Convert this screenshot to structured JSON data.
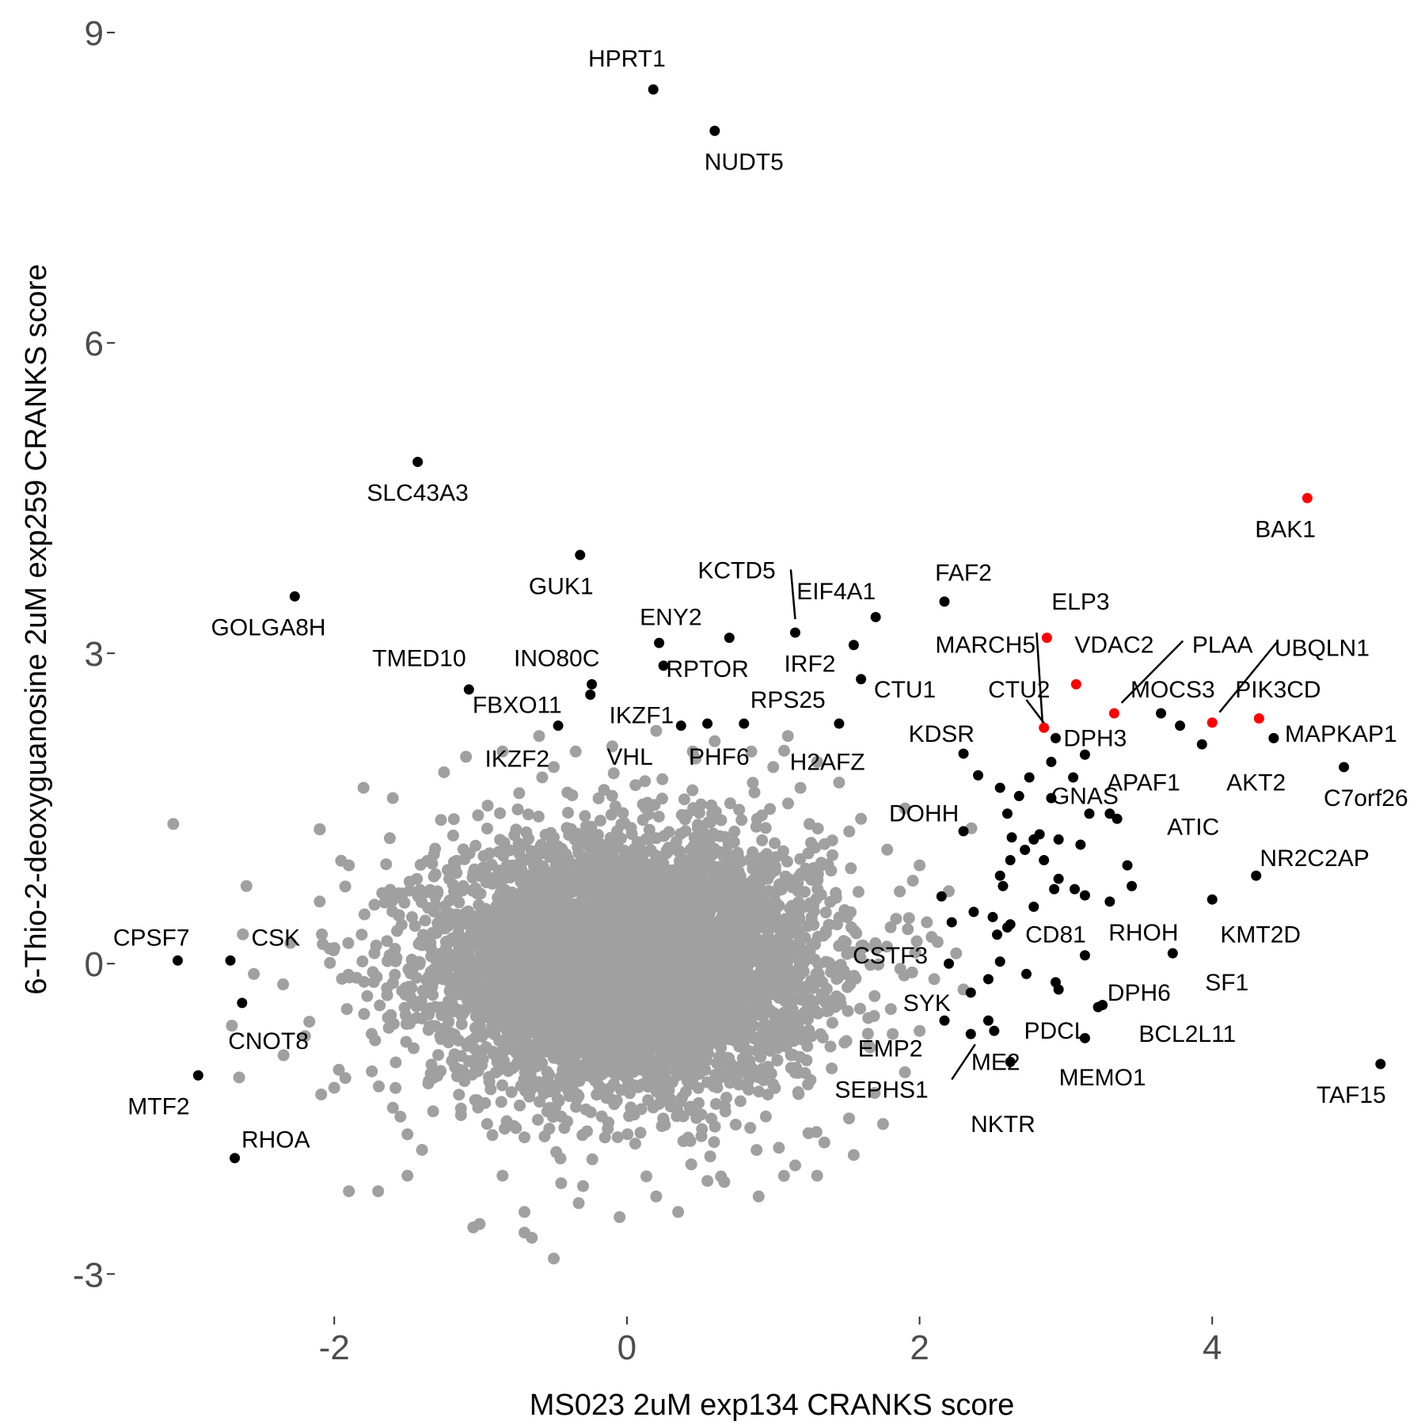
{
  "chart_data": {
    "type": "scatter",
    "xlabel": "MS023 2uM exp134 CRANKS score",
    "ylabel": "6-Thio-2-deoxyguanosine 2uM exp259 CRANKS score",
    "xlim": [
      -3.5,
      5.4
    ],
    "ylim": [
      -3.35,
      9.2
    ],
    "x_ticks": [
      {
        "value": -2,
        "label": "-2"
      },
      {
        "value": 0,
        "label": "0"
      },
      {
        "value": 2,
        "label": "2"
      },
      {
        "value": 4,
        "label": "4"
      }
    ],
    "y_ticks": [
      {
        "value": -3,
        "label": "-3"
      },
      {
        "value": 0,
        "label": "0"
      },
      {
        "value": 3,
        "label": "3"
      },
      {
        "value": 6,
        "label": "6"
      },
      {
        "value": 9,
        "label": "9"
      }
    ],
    "grid": false,
    "colors": {
      "background": "#ffffff",
      "background_points": "#a0a0a0",
      "highlight_black": "#000000",
      "highlight_red": "#ff0000",
      "tick_text": "#4d4d4d",
      "axis_text": "#000000"
    },
    "background_cloud": {
      "description_free": true,
      "center": [
        0.0,
        0.0
      ],
      "sd": [
        0.65,
        0.6
      ],
      "count": 6000
    },
    "background_points": [
      [
        -3.1,
        1.35
      ],
      [
        -2.6,
        0.75
      ],
      [
        -2.3,
        0.2
      ],
      [
        -2.55,
        -0.1
      ],
      [
        -2.7,
        -0.6
      ],
      [
        -2.65,
        -1.1
      ],
      [
        -2.35,
        -0.2
      ],
      [
        -1.9,
        -2.2
      ],
      [
        -1.7,
        -2.2
      ],
      [
        -1.5,
        -1.65
      ],
      [
        -1.5,
        -2.05
      ],
      [
        -1.05,
        -2.55
      ],
      [
        -0.85,
        -2.05
      ],
      [
        -0.7,
        -2.6
      ],
      [
        -0.65,
        -2.65
      ],
      [
        -0.5,
        -2.85
      ],
      [
        -0.3,
        -2.15
      ],
      [
        -0.05,
        -2.45
      ],
      [
        0.2,
        -2.25
      ],
      [
        0.55,
        -2.1
      ],
      [
        0.9,
        -2.25
      ],
      [
        -2.1,
        1.3
      ],
      [
        -1.8,
        1.7
      ],
      [
        -1.6,
        1.6
      ],
      [
        -1.25,
        1.85
      ],
      [
        -1.1,
        2.0
      ],
      [
        -0.85,
        2.05
      ],
      [
        -0.5,
        1.9
      ],
      [
        -0.35,
        2.05
      ],
      [
        -0.1,
        2.1
      ],
      [
        0.2,
        2.25
      ],
      [
        0.45,
        2.05
      ],
      [
        0.6,
        2.15
      ],
      [
        0.85,
        2.05
      ],
      [
        1.1,
        2.2
      ],
      [
        1.3,
        1.95
      ],
      [
        1.45,
        1.75
      ],
      [
        1.6,
        1.4
      ],
      [
        1.9,
        1.5
      ],
      [
        2.0,
        0.95
      ],
      [
        2.05,
        0.4
      ],
      [
        2.1,
        -0.15
      ],
      [
        2.0,
        -0.65
      ],
      [
        1.9,
        -1.05
      ],
      [
        1.75,
        -1.55
      ],
      [
        1.55,
        -1.85
      ],
      [
        1.3,
        -2.05
      ],
      [
        1.15,
        -1.95
      ],
      [
        -2.0,
        -1.2
      ],
      [
        -2.2,
        -0.7
      ],
      [
        -2.1,
        0.6
      ],
      [
        -1.9,
        0.95
      ],
      [
        2.2,
        0.7
      ],
      [
        2.25,
        0.1
      ],
      [
        2.3,
        -0.25
      ],
      [
        -1.4,
        -1.8
      ],
      [
        0.35,
        -2.4
      ],
      [
        -0.7,
        -2.4
      ],
      [
        1.0,
        1.9
      ],
      [
        -0.6,
        2.2
      ]
    ],
    "highlighted_points": [
      {
        "label": "HPRT1",
        "x": 0.18,
        "y": 8.45,
        "color": "black"
      },
      {
        "label": "NUDT5",
        "x": 0.6,
        "y": 8.05,
        "color": "black"
      },
      {
        "label": "SLC43A3",
        "x": -1.43,
        "y": 4.85,
        "color": "black"
      },
      {
        "label": "BAK1",
        "x": 4.65,
        "y": 4.5,
        "color": "red"
      },
      {
        "label": "GUK1",
        "x": -0.32,
        "y": 3.95,
        "color": "black"
      },
      {
        "label": "GOLGA8H",
        "x": -2.27,
        "y": 3.55,
        "color": "black"
      },
      {
        "label": "FAF2",
        "x": 2.17,
        "y": 3.5,
        "color": "black"
      },
      {
        "label": "EIF4A1",
        "x": 1.7,
        "y": 3.35,
        "color": "black"
      },
      {
        "label": "KCTD5",
        "x": 1.15,
        "y": 3.2,
        "color": "black"
      },
      {
        "label": "IRF2",
        "x": 0.7,
        "y": 3.15,
        "color": "black"
      },
      {
        "label": "ENY2",
        "x": 0.22,
        "y": 3.1,
        "color": "black"
      },
      {
        "label": "ELP3",
        "x": 2.87,
        "y": 3.15,
        "color": "red"
      },
      {
        "label": "MARCH5",
        "x": 1.55,
        "y": 3.08,
        "color": "black"
      },
      {
        "label": "RPTOR",
        "x": 0.25,
        "y": 2.88,
        "color": "black"
      },
      {
        "label": "CTU1",
        "x": 1.6,
        "y": 2.75,
        "color": "black"
      },
      {
        "label": "VDAC2",
        "x": 3.07,
        "y": 2.7,
        "color": "red"
      },
      {
        "label": "INO80C",
        "x": -0.24,
        "y": 2.7,
        "color": "black"
      },
      {
        "label": "TMED10",
        "x": -1.08,
        "y": 2.65,
        "color": "black"
      },
      {
        "label": "FBXO11",
        "x": -0.25,
        "y": 2.6,
        "color": "black"
      },
      {
        "label": "PLAA",
        "x": 3.33,
        "y": 2.42,
        "color": "red"
      },
      {
        "label": "MOCS3",
        "x": 3.65,
        "y": 2.42,
        "color": "black"
      },
      {
        "label": "UBQLN1",
        "x": 4.0,
        "y": 2.33,
        "color": "red"
      },
      {
        "label": "PIK3CD",
        "x": 4.32,
        "y": 2.37,
        "color": "red"
      },
      {
        "label": "CTU2",
        "x": 2.85,
        "y": 2.28,
        "color": "red"
      },
      {
        "label": "IKZF1",
        "x": 0.55,
        "y": 2.32,
        "color": "black"
      },
      {
        "label": "RPS25",
        "x": 1.45,
        "y": 2.32,
        "color": "black"
      },
      {
        "label": "PHF6",
        "x": 0.8,
        "y": 2.32,
        "color": "black"
      },
      {
        "label": "VHL",
        "x": 0.37,
        "y": 2.3,
        "color": "black"
      },
      {
        "label": "IKZF2",
        "x": -0.47,
        "y": 2.3,
        "color": "black"
      },
      {
        "label": "DPH3",
        "x": 2.93,
        "y": 2.18,
        "color": "black"
      },
      {
        "label": "MAPKAP1",
        "x": 4.42,
        "y": 2.18,
        "color": "black"
      },
      {
        "label": "AKT2",
        "x": 3.93,
        "y": 2.12,
        "color": "black"
      },
      {
        "label": "APAF1",
        "x": 3.78,
        "y": 2.3,
        "color": "black"
      },
      {
        "label": "KDSR",
        "x": 2.3,
        "y": 2.03,
        "color": "black"
      },
      {
        "label": "C7orf26",
        "x": 4.9,
        "y": 1.9,
        "color": "black"
      },
      {
        "label": "GNAS",
        "x": 3.13,
        "y": 2.02,
        "color": "black"
      },
      {
        "label": "ATIC",
        "x": 3.3,
        "y": 1.45,
        "color": "black"
      },
      {
        "label": "DOHH",
        "x": 2.3,
        "y": 1.28,
        "color": "black"
      },
      {
        "label": "NR2C2AP",
        "x": 4.3,
        "y": 0.85,
        "color": "black"
      },
      {
        "label": "KMT2D",
        "x": 4.0,
        "y": 0.62,
        "color": "black"
      },
      {
        "label": "CD81",
        "x": 2.92,
        "y": 0.72,
        "color": "black"
      },
      {
        "label": "RHOH",
        "x": 3.3,
        "y": 0.6,
        "color": "black"
      },
      {
        "label": "CPSF7",
        "x": -3.07,
        "y": 0.03,
        "color": "black"
      },
      {
        "label": "CSK",
        "x": -2.71,
        "y": 0.03,
        "color": "black"
      },
      {
        "label": "CSTF3",
        "x": 2.22,
        "y": 0.4,
        "color": "black"
      },
      {
        "label": "SF1",
        "x": 3.73,
        "y": 0.1,
        "color": "black"
      },
      {
        "label": "DPH6",
        "x": 3.13,
        "y": 0.08,
        "color": "black"
      },
      {
        "label": "CNOT8",
        "x": -2.63,
        "y": -0.38,
        "color": "black"
      },
      {
        "label": "SYK",
        "x": 2.35,
        "y": -0.28,
        "color": "black"
      },
      {
        "label": "BCL2L11",
        "x": 3.22,
        "y": -0.42,
        "color": "black"
      },
      {
        "label": "PDCL",
        "x": 2.93,
        "y": -0.18,
        "color": "black"
      },
      {
        "label": "EMP2",
        "x": 2.17,
        "y": -0.55,
        "color": "black"
      },
      {
        "label": "ME2",
        "x": 2.35,
        "y": -0.68,
        "color": "black"
      },
      {
        "label": "MEMO1",
        "x": 3.13,
        "y": -0.72,
        "color": "black"
      },
      {
        "label": "SEPHS1",
        "x": 2.51,
        "y": -0.65,
        "color": "black"
      },
      {
        "label": "NKTR",
        "x": 2.62,
        "y": -0.95,
        "color": "black"
      },
      {
        "label": "MTF2",
        "x": -2.93,
        "y": -1.08,
        "color": "black"
      },
      {
        "label": "TAF15",
        "x": 5.15,
        "y": -0.97,
        "color": "black"
      },
      {
        "label": "RHOA",
        "x": -2.68,
        "y": -1.88,
        "color": "black"
      }
    ],
    "unlabeled_points": [
      [
        2.55,
        1.7
      ],
      [
        2.75,
        1.8
      ],
      [
        2.9,
        1.95
      ],
      [
        3.05,
        1.8
      ],
      [
        2.6,
        1.45
      ],
      [
        2.82,
        1.25
      ],
      [
        2.78,
        1.2
      ],
      [
        2.63,
        1.22
      ],
      [
        2.95,
        1.2
      ],
      [
        3.1,
        1.15
      ],
      [
        2.72,
        1.1
      ],
      [
        2.85,
        1.0
      ],
      [
        3.42,
        0.95
      ],
      [
        2.55,
        0.85
      ],
      [
        2.57,
        0.75
      ],
      [
        2.95,
        0.82
      ],
      [
        3.06,
        0.72
      ],
      [
        3.45,
        0.75
      ],
      [
        2.78,
        0.55
      ],
      [
        2.37,
        0.5
      ],
      [
        2.5,
        0.45
      ],
      [
        2.62,
        0.38
      ],
      [
        2.6,
        0.35
      ],
      [
        2.55,
        0.02
      ],
      [
        2.73,
        -0.1
      ],
      [
        2.95,
        -0.25
      ],
      [
        2.2,
        0.0
      ],
      [
        2.47,
        -0.55
      ],
      [
        3.25,
        -0.4
      ],
      [
        2.15,
        0.65
      ],
      [
        3.35,
        1.4
      ],
      [
        3.16,
        1.45
      ],
      [
        2.62,
        1.0
      ],
      [
        2.4,
        1.82
      ],
      [
        2.68,
        1.62
      ],
      [
        2.9,
        1.6
      ],
      [
        3.13,
        0.66
      ],
      [
        2.53,
        0.28
      ],
      [
        2.47,
        -0.15
      ]
    ],
    "labels": [
      {
        "text": "HPRT1",
        "x": 0.0,
        "y": 8.75
      },
      {
        "text": "NUDT5",
        "x": 0.8,
        "y": 7.75
      },
      {
        "text": "SLC43A3",
        "x": -1.43,
        "y": 4.55
      },
      {
        "text": "BAK1",
        "x": 4.5,
        "y": 4.2
      },
      {
        "text": "GUK1",
        "x": -0.45,
        "y": 3.65
      },
      {
        "text": "GOLGA8H",
        "x": -2.45,
        "y": 3.25
      },
      {
        "text": "KCTD5",
        "x": 0.75,
        "y": 3.8
      },
      {
        "text": "FAF2",
        "x": 2.3,
        "y": 3.78
      },
      {
        "text": "EIF4A1",
        "x": 1.43,
        "y": 3.6
      },
      {
        "text": "ELP3",
        "x": 3.1,
        "y": 3.5
      },
      {
        "text": "ENY2",
        "x": 0.3,
        "y": 3.35
      },
      {
        "text": "MARCH5",
        "x": 2.45,
        "y": 3.08
      },
      {
        "text": "VDAC2",
        "x": 3.33,
        "y": 3.08
      },
      {
        "text": "PLAA",
        "x": 4.07,
        "y": 3.08
      },
      {
        "text": "UBQLN1",
        "x": 4.75,
        "y": 3.05
      },
      {
        "text": "TMED10",
        "x": -1.42,
        "y": 2.95
      },
      {
        "text": "INO80C",
        "x": -0.48,
        "y": 2.95
      },
      {
        "text": "RPTOR",
        "x": 0.55,
        "y": 2.85
      },
      {
        "text": "IRF2",
        "x": 1.25,
        "y": 2.9
      },
      {
        "text": "CTU1",
        "x": 1.9,
        "y": 2.65
      },
      {
        "text": "CTU2",
        "x": 2.68,
        "y": 2.65
      },
      {
        "text": "MOCS3",
        "x": 3.73,
        "y": 2.65
      },
      {
        "text": "PIK3CD",
        "x": 4.45,
        "y": 2.65
      },
      {
        "text": "FBXO11",
        "x": -0.75,
        "y": 2.5
      },
      {
        "text": "IKZF1",
        "x": 0.1,
        "y": 2.4
      },
      {
        "text": "RPS25",
        "x": 1.1,
        "y": 2.55
      },
      {
        "text": "KDSR",
        "x": 2.15,
        "y": 2.22
      },
      {
        "text": "DPH3",
        "x": 3.2,
        "y": 2.18
      },
      {
        "text": "MAPKAP1",
        "x": 4.88,
        "y": 2.22
      },
      {
        "text": "IKZF2",
        "x": -0.75,
        "y": 1.98
      },
      {
        "text": "VHL",
        "x": 0.02,
        "y": 2.0
      },
      {
        "text": "PHF6",
        "x": 0.63,
        "y": 2.0
      },
      {
        "text": "H2AFZ",
        "x": 1.37,
        "y": 1.95
      },
      {
        "text": "APAF1",
        "x": 3.53,
        "y": 1.75
      },
      {
        "text": "AKT2",
        "x": 4.3,
        "y": 1.75
      },
      {
        "text": "GNAS",
        "x": 3.13,
        "y": 1.62
      },
      {
        "text": "C7orf26",
        "x": 5.05,
        "y": 1.6
      },
      {
        "text": "DOHH",
        "x": 2.03,
        "y": 1.45
      },
      {
        "text": "ATIC",
        "x": 3.87,
        "y": 1.32
      },
      {
        "text": "NR2C2AP",
        "x": 4.7,
        "y": 1.02
      },
      {
        "text": "CSK",
        "x": -2.4,
        "y": 0.25
      },
      {
        "text": "CPSF7",
        "x": -3.25,
        "y": 0.25
      },
      {
        "text": "CD81",
        "x": 2.93,
        "y": 0.28
      },
      {
        "text": "RHOH",
        "x": 3.53,
        "y": 0.3
      },
      {
        "text": "KMT2D",
        "x": 4.33,
        "y": 0.28
      },
      {
        "text": "CSTF3",
        "x": 1.8,
        "y": 0.08
      },
      {
        "text": "SF1",
        "x": 4.1,
        "y": -0.18
      },
      {
        "text": "DPH6",
        "x": 3.5,
        "y": -0.28
      },
      {
        "text": "SYK",
        "x": 2.05,
        "y": -0.38
      },
      {
        "text": "CNOT8",
        "x": -2.45,
        "y": -0.75
      },
      {
        "text": "PDCL",
        "x": 2.93,
        "y": -0.65
      },
      {
        "text": "BCL2L11",
        "x": 3.83,
        "y": -0.68
      },
      {
        "text": "EMP2",
        "x": 1.8,
        "y": -0.82
      },
      {
        "text": "ME2",
        "x": 2.52,
        "y": -0.95
      },
      {
        "text": "MEMO1",
        "x": 3.25,
        "y": -1.1
      },
      {
        "text": "SEPHS1",
        "x": 1.74,
        "y": -1.22
      },
      {
        "text": "MTF2",
        "x": -3.2,
        "y": -1.38
      },
      {
        "text": "TAF15",
        "x": 4.95,
        "y": -1.27
      },
      {
        "text": "NKTR",
        "x": 2.57,
        "y": -1.55
      },
      {
        "text": "RHOA",
        "x": -2.4,
        "y": -1.7
      }
    ],
    "leader_lines": [
      {
        "from": [
          1.12,
          3.81
        ],
        "to": [
          1.15,
          3.33
        ]
      },
      {
        "from": [
          2.8,
          3.2
        ],
        "to": [
          2.84,
          2.33
        ]
      },
      {
        "from": [
          2.73,
          2.55
        ],
        "to": [
          2.88,
          2.27
        ]
      },
      {
        "from": [
          3.8,
          3.12
        ],
        "to": [
          3.38,
          2.52
        ]
      },
      {
        "from": [
          4.45,
          3.12
        ],
        "to": [
          4.05,
          2.43
        ]
      },
      {
        "from": [
          2.38,
          -0.78
        ],
        "to": [
          2.22,
          -1.12
        ]
      }
    ]
  }
}
